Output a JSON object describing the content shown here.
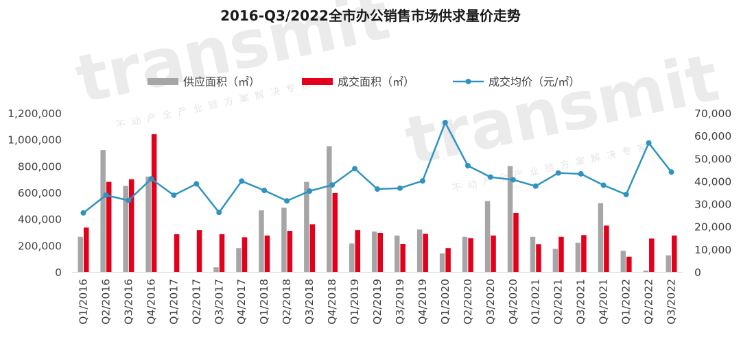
{
  "chart_data": {
    "type": "bar",
    "title": "2016-Q3/2022全市办公销售市场供求量价走势",
    "categories": [
      "Q1/2016",
      "Q2/2016",
      "Q3/2016",
      "Q4/2016",
      "Q1/2017",
      "Q2/2017",
      "Q3/2017",
      "Q4/2017",
      "Q1/2018",
      "Q2/2018",
      "Q3/2018",
      "Q4/2018",
      "Q1/2019",
      "Q2/2019",
      "Q3/2019",
      "Q4/2019",
      "Q1/2020",
      "Q2/2020",
      "Q3/2020",
      "Q4/2020",
      "Q1/2021",
      "Q2/2021",
      "Q3/2021",
      "Q4/2021",
      "Q1/2022",
      "Q2/2022",
      "Q3/2022"
    ],
    "series": [
      {
        "name": "供应面积（㎡）",
        "type": "bar",
        "axis": "left",
        "color": "#a6a6a6",
        "values": [
          265000,
          920000,
          650000,
          720000,
          0,
          0,
          35000,
          180000,
          465000,
          485000,
          680000,
          950000,
          215000,
          305000,
          275000,
          320000,
          140000,
          265000,
          535000,
          800000,
          265000,
          175000,
          220000,
          520000,
          160000,
          10000,
          125000
        ]
      },
      {
        "name": "成交面积（㎡）",
        "type": "bar",
        "axis": "left",
        "color": "#e3001b",
        "values": [
          335000,
          680000,
          700000,
          1040000,
          285000,
          315000,
          285000,
          262000,
          275000,
          310000,
          360000,
          595000,
          315000,
          295000,
          212000,
          288000,
          180000,
          255000,
          275000,
          445000,
          210000,
          265000,
          278000,
          350000,
          115000,
          252000,
          275000
        ]
      },
      {
        "name": "成交均价（元/㎡）",
        "type": "line",
        "axis": "right",
        "color": "#2e93c0",
        "values": [
          26000,
          33800,
          31500,
          41000,
          33800,
          38800,
          26200,
          40000,
          35900,
          31300,
          35600,
          38300,
          45500,
          36500,
          36900,
          40100,
          65800,
          46800,
          41800,
          40600,
          37800,
          43600,
          43200,
          38200,
          34100,
          56800,
          44000
        ]
      }
    ],
    "left_axis": {
      "min": 0,
      "max": 1200000,
      "ticks": [
        "0",
        "200,000",
        "400,000",
        "600,000",
        "800,000",
        "1,000,000",
        "1,200,000"
      ]
    },
    "right_axis": {
      "min": 0,
      "max": 70000,
      "ticks": [
        "0",
        "10,000",
        "20,000",
        "30,000",
        "40,000",
        "50,000",
        "60,000",
        "70,000"
      ]
    },
    "legend_position": "top",
    "grid": false,
    "watermark": {
      "brand": "transmit",
      "slogan": "不动产全产业链方案解决专家"
    }
  }
}
